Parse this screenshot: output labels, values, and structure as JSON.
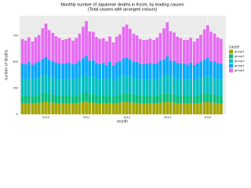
{
  "chart_data": {
    "type": "stacked-bar",
    "title": "Monthly number of Japanese deaths in Kochi, by leading causes",
    "subtitle": "(Total causes with arranged colours)",
    "x_label": "month",
    "y_label": "number of deaths",
    "legend_title": "cause",
    "x": [
      2009.42,
      2009.5,
      2009.58,
      2009.67,
      2009.75,
      2009.83,
      2009.92,
      2010,
      2010.08,
      2010.17,
      2010.25,
      2010.33,
      2010.42,
      2010.5,
      2010.58,
      2010.67,
      2010.75,
      2010.83,
      2010.92,
      2011,
      2011.08,
      2011.17,
      2011.25,
      2011.33,
      2011.42,
      2011.5,
      2011.58,
      2011.67,
      2011.75,
      2011.83,
      2011.92,
      2012,
      2012.08,
      2012.17,
      2012.25,
      2012.33,
      2012.42,
      2012.5,
      2012.58,
      2012.67,
      2012.75,
      2012.83,
      2012.92,
      2013,
      2013.08,
      2013.17,
      2013.25,
      2013.33,
      2013.42,
      2013.5,
      2013.58,
      2013.67,
      2013.75,
      2013.83,
      2013.92,
      2014,
      2014.08,
      2014.17,
      2014.25,
      2014.33
    ],
    "xlim": [
      2009.35,
      2014.45
    ],
    "xticks": [
      2010,
      2011,
      2012,
      2013,
      2014
    ],
    "ylim": [
      0,
      940
    ],
    "yticks": [
      0,
      250,
      500,
      750
    ],
    "series": [
      {
        "name": "group1",
        "color": "#a3a500",
        "values": [
          106,
          104,
          109,
          103,
          107,
          110,
          116,
          120,
          113,
          111,
          108,
          106,
          105,
          106,
          108,
          104,
          106,
          111,
          118,
          122,
          112,
          112,
          107,
          105,
          107,
          103,
          110,
          102,
          108,
          111,
          117,
          119,
          114,
          110,
          109,
          105,
          104,
          105,
          107,
          105,
          107,
          112,
          115,
          121,
          112,
          111,
          107,
          106,
          106,
          104,
          108,
          103,
          106,
          110,
          114,
          118,
          111,
          110,
          106,
          105
        ]
      },
      {
        "name": "group2",
        "color": "#00bf7d",
        "values": [
          74,
          72,
          76,
          71,
          75,
          77,
          82,
          85,
          80,
          78,
          75,
          73,
          73,
          74,
          75,
          72,
          74,
          78,
          83,
          87,
          79,
          79,
          74,
          72,
          75,
          71,
          77,
          70,
          76,
          78,
          84,
          84,
          81,
          77,
          76,
          73,
          72,
          73,
          74,
          73,
          74,
          79,
          81,
          86,
          79,
          78,
          75,
          74,
          73,
          72,
          75,
          71,
          74,
          77,
          80,
          83,
          78,
          77,
          74,
          73
        ]
      },
      {
        "name": "group3",
        "color": "#00bfc4",
        "values": [
          158,
          155,
          160,
          154,
          159,
          163,
          170,
          176,
          168,
          164,
          160,
          157,
          156,
          157,
          159,
          155,
          158,
          165,
          172,
          180,
          166,
          166,
          159,
          156,
          159,
          153,
          162,
          152,
          160,
          164,
          171,
          174,
          170,
          163,
          162,
          156,
          155,
          156,
          158,
          156,
          158,
          166,
          169,
          178,
          165,
          165,
          159,
          157,
          156,
          154,
          159,
          153,
          157,
          163,
          168,
          173,
          164,
          163,
          158,
          156
        ]
      },
      {
        "name": "group4",
        "color": "#00a9ff",
        "values": [
          148,
          146,
          151,
          145,
          150,
          153,
          160,
          166,
          158,
          155,
          150,
          149,
          147,
          148,
          150,
          146,
          149,
          155,
          162,
          169,
          156,
          157,
          149,
          147,
          150,
          144,
          152,
          143,
          151,
          154,
          161,
          163,
          160,
          153,
          152,
          147,
          146,
          147,
          149,
          147,
          149,
          156,
          159,
          167,
          155,
          155,
          150,
          148,
          147,
          145,
          150,
          144,
          148,
          153,
          158,
          162,
          154,
          153,
          149,
          147
        ]
      },
      {
        "name": "group5",
        "color": "#e76bf3",
        "values": [
          232,
          226,
          238,
          221,
          243,
          252,
          292,
          318,
          284,
          268,
          251,
          243,
          228,
          231,
          236,
          225,
          240,
          258,
          298,
          330,
          276,
          272,
          248,
          239,
          235,
          224,
          241,
          219,
          246,
          255,
          301,
          315,
          290,
          265,
          253,
          236,
          230,
          229,
          233,
          227,
          242,
          260,
          295,
          325,
          281,
          270,
          249,
          241,
          226,
          233,
          237,
          222,
          238,
          254,
          289,
          312,
          279,
          266,
          247,
          238
        ]
      }
    ]
  }
}
